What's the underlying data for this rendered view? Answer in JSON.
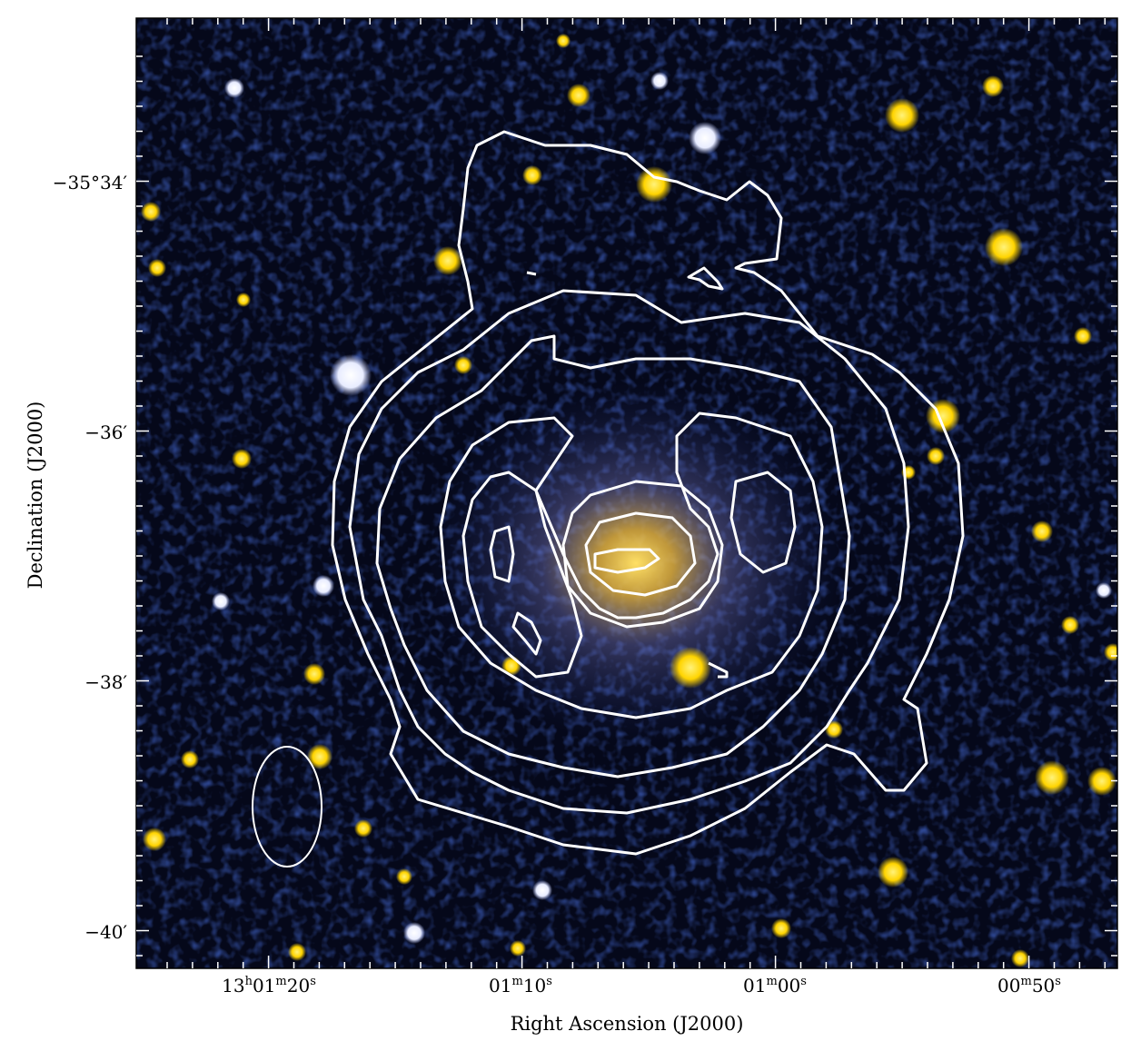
{
  "figure": {
    "x_axis_title": "Right Ascension (J2000)",
    "y_axis_title": "Declination (J2000)",
    "x_ticks": [
      {
        "h": "13",
        "m": "01",
        "s": "20",
        "label": "13h01m20s"
      },
      {
        "m": "01",
        "s": "10",
        "label": "01m10s"
      },
      {
        "m": "01",
        "s": "00",
        "label": "01m00s"
      },
      {
        "m": "00",
        "s": "50",
        "label": "00m50s"
      }
    ],
    "y_ticks": [
      "−35°34′",
      "−36′",
      "−38′",
      "−40′"
    ],
    "colors": {
      "sky_background": "#05081a",
      "noise_blue": "#1e3a9a",
      "star_yellow": "#ffd400",
      "star_white": "#f4f6ff",
      "contour": "#ffffff"
    },
    "beam": {
      "shape": "ellipse",
      "color": "#ffffff"
    }
  }
}
